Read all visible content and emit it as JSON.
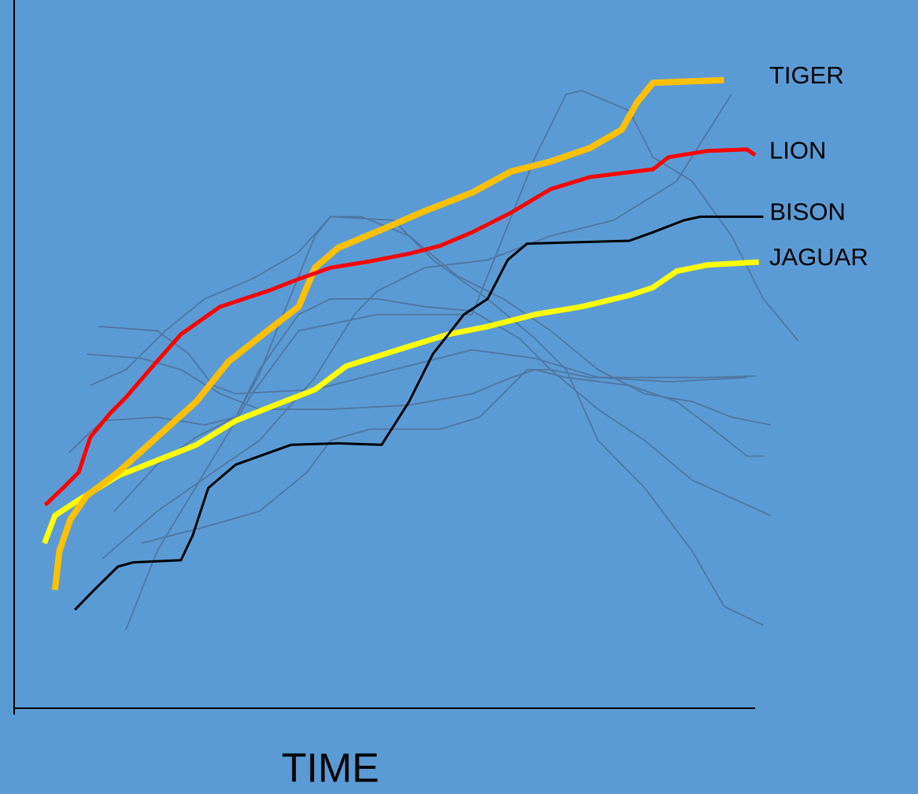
{
  "chart_data": {
    "type": "line",
    "xlabel": "TIME",
    "xlim": [
      0,
      100
    ],
    "ylim": [
      0,
      100
    ],
    "background": "#5b9bd5",
    "axis_color": "#000000",
    "series": [
      {
        "color": "#4f76a0",
        "x": [
          15.1,
          19.3,
          25.7,
          32.1,
          38.4,
          49.0,
          61.8,
          70.3,
          74.5,
          76.6,
          83.0,
          86.2,
          91.5,
          96.8,
          101.1,
          105.8
        ],
        "values": [
          11.1,
          22.2,
          33.3,
          44.4,
          53.3,
          55.6,
          55.6,
          77.8,
          86.7,
          87.2,
          84.4,
          77.8,
          74.4,
          66.7,
          57.8,
          51.9
        ]
      },
      {
        "color": "#4f76a0",
        "x": [
          11.9,
          19.3,
          26.8,
          33.1,
          40.6,
          45.9,
          49.0,
          55.4,
          63.9,
          72.4,
          80.9,
          89.4,
          96.8
        ],
        "values": [
          21.1,
          27.8,
          33.3,
          37.8,
          46.7,
          55.6,
          58.9,
          62.2,
          63.3,
          66.7,
          68.9,
          74.4,
          86.7
        ]
      },
      {
        "color": "#4f76a0",
        "x": [
          10.3,
          15.1,
          20.4,
          25.7,
          32.1,
          38.4,
          42.7,
          51.2,
          56.5,
          63.9,
          70.3,
          74.5,
          78.8,
          85.1,
          91.5,
          95.8,
          101.1
        ],
        "values": [
          45.6,
          47.8,
          53.3,
          57.8,
          60.6,
          64.4,
          69.4,
          68.9,
          63.3,
          57.8,
          52.2,
          47.8,
          37.8,
          31.1,
          22.2,
          14.4,
          11.7
        ]
      },
      {
        "color": "#4f76a0",
        "x": [
          11.4,
          19.3,
          23.6,
          26.8,
          29.9,
          40.6,
          51.2,
          61.8,
          70.3,
          78.8,
          88.3,
          98.9
        ],
        "values": [
          53.9,
          53.3,
          50,
          45.6,
          44.4,
          45,
          47.8,
          50.6,
          49.4,
          46.7,
          46.1,
          46.7
        ]
      },
      {
        "color": "#4f76a0",
        "x": [
          9.8,
          17.2,
          22.5,
          27.8,
          33.1,
          42.7,
          53.3,
          61.8,
          67.1,
          70.3,
          74.5,
          83.0,
          89.4,
          93.6,
          98.9,
          101.1
        ],
        "values": [
          50,
          49.4,
          47.8,
          44.4,
          42.2,
          42.2,
          42.8,
          44.4,
          46.7,
          47.8,
          46.7,
          45.6,
          43.3,
          40,
          35.6,
          35.6
        ]
      },
      {
        "color": "#4f76a0",
        "x": [
          7.4,
          11.9,
          19.3,
          25.7,
          29.9,
          33.1,
          38.4,
          42.7,
          49.0,
          55.4,
          61.8,
          68.2,
          72.4,
          78.8,
          85.1,
          91.5,
          102.1
        ],
        "values": [
          36.1,
          40.6,
          41.1,
          40,
          41.1,
          47.8,
          55.6,
          57.8,
          57.8,
          56.7,
          56.1,
          52.2,
          47.8,
          42.2,
          37.8,
          32.2,
          27.2
        ]
      },
      {
        "color": "#4f76a0",
        "x": [
          13.5,
          19.3,
          24.6,
          29.9,
          33.1,
          36.3,
          40.6,
          42.7,
          46.9,
          53.3,
          59.7,
          66.0,
          72.4,
          78.8,
          85.1,
          91.5,
          96.8,
          102.1
        ],
        "values": [
          27.8,
          34.4,
          38.3,
          41.1,
          47.2,
          55.6,
          66.7,
          69.4,
          69.4,
          66.7,
          61.1,
          57.8,
          53.3,
          47.8,
          44.4,
          43.3,
          41.1,
          40
        ]
      },
      {
        "color": "#4f76a0",
        "x": [
          17.2,
          25.7,
          33.1,
          39.5,
          42.7,
          48.0,
          57.5,
          62.8,
          66.0,
          69.2,
          72.4,
          77.7,
          86.2,
          93.6,
          100
        ],
        "values": [
          23.3,
          25.6,
          27.8,
          33.3,
          37.8,
          39.4,
          39.4,
          41.1,
          44.4,
          47.8,
          47.8,
          46.7,
          46.7,
          46.7,
          46.9
        ]
      },
      {
        "name": "JAGUAR",
        "color": "#ffff00",
        "x": [
          4.1,
          5.5,
          8.7,
          14.0,
          19.3,
          24.6,
          29.9,
          35.2,
          40.6,
          44.8,
          53.3,
          58.6,
          63.9,
          70.3,
          76.6,
          83.0,
          86.2,
          89.4,
          93.6,
          100.5
        ],
        "values": [
          23.3,
          27.2,
          29.4,
          32.8,
          35,
          37.2,
          40.6,
          42.8,
          45,
          48.3,
          51.1,
          52.8,
          53.9,
          55.6,
          56.7,
          58.3,
          59.4,
          61.7,
          62.6,
          63
        ]
      },
      {
        "name": "TIGER",
        "color": "#ffc000",
        "x": [
          5.5,
          6.1,
          7.6,
          9.8,
          14.0,
          19.3,
          24.6,
          28.9,
          34.2,
          38.4,
          40.6,
          43.7,
          50.1,
          55.4,
          61.8,
          67.1,
          72.4,
          77.7,
          82.0,
          84.1,
          86.2,
          95.8
        ],
        "values": [
          16.7,
          22.2,
          26.7,
          30,
          33.3,
          38.3,
          43.3,
          48.9,
          53.3,
          56.7,
          62.2,
          65,
          67.8,
          70.2,
          72.8,
          75.8,
          77.2,
          79.1,
          81.7,
          85.6,
          88.3,
          88.7
        ]
      },
      {
        "name": "LION",
        "color": "#ff0000",
        "x": [
          4.2,
          6.6,
          8.7,
          10.3,
          13.0,
          15.1,
          18.3,
          22.5,
          27.8,
          34.2,
          38.4,
          42.7,
          48.0,
          53.4,
          57.5,
          61.8,
          67.1,
          72.4,
          77.7,
          86.2,
          88.3,
          93.6,
          98.9,
          100
        ],
        "values": [
          28.7,
          31.1,
          33.3,
          38.3,
          41.7,
          43.9,
          47.8,
          52.8,
          56.7,
          58.9,
          60.6,
          62.2,
          63.1,
          64.2,
          65.3,
          67.2,
          70,
          73.3,
          75,
          76.1,
          77.8,
          78.7,
          78.9,
          78.1
        ]
      },
      {
        "name": "BISON",
        "color": "#000000",
        "x": [
          8.2,
          10.8,
          14.0,
          16.1,
          22.5,
          24.1,
          26.2,
          29.9,
          37.4,
          43.7,
          49.6,
          53.3,
          56.5,
          60.7,
          63.9,
          66.6,
          69.2,
          83.0,
          86.2,
          90.4,
          92.6,
          101.1
        ],
        "values": [
          13.9,
          16.7,
          20,
          20.6,
          20.9,
          24.4,
          31.1,
          34.4,
          37.2,
          37.4,
          37.2,
          43.3,
          50,
          55.6,
          57.8,
          63.3,
          65.6,
          66,
          67.2,
          68.9,
          69.4,
          69.4
        ]
      }
    ]
  }
}
